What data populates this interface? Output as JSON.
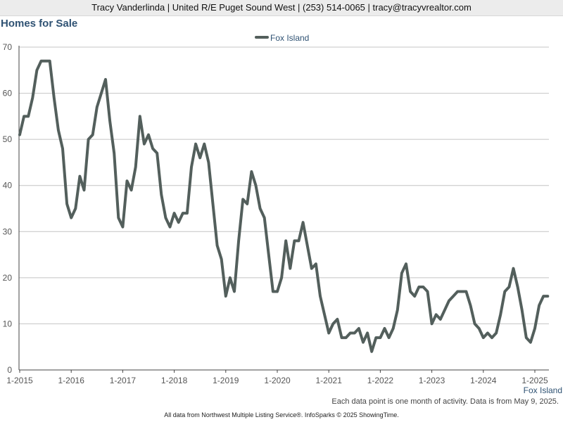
{
  "header": {
    "contact_line": "Tracy Vanderlinda | United R/E Puget Sound West | (253) 514-0065 | tracy@tracyvrealtor.com"
  },
  "chart_data": {
    "type": "line",
    "title": "Homes for Sale",
    "xlabel": "",
    "ylabel": "",
    "ylim": [
      0,
      70
    ],
    "yticks": [
      0,
      10,
      20,
      30,
      40,
      50,
      60,
      70
    ],
    "xticks": [
      "1-2015",
      "1-2016",
      "1-2017",
      "1-2018",
      "1-2019",
      "1-2020",
      "1-2021",
      "1-2022",
      "1-2023",
      "1-2024",
      "1-2025"
    ],
    "x_start": "2015-01",
    "x_step": "1 month",
    "grid": "horizontal",
    "legend_position": "top-center",
    "series_color": "#535f5c",
    "x_axis_series_label": "Fox Island",
    "series": [
      {
        "name": "Fox Island",
        "values": [
          51,
          55,
          55,
          59,
          65,
          67,
          67,
          67,
          59,
          52,
          48,
          36,
          33,
          35,
          42,
          39,
          50,
          51,
          57,
          60,
          63,
          54,
          47,
          33,
          31,
          41,
          39,
          44,
          55,
          49,
          51,
          48,
          47,
          38,
          33,
          31,
          34,
          32,
          34,
          34,
          44,
          49,
          46,
          49,
          45,
          36,
          27,
          24,
          16,
          20,
          17,
          28,
          37,
          36,
          43,
          40,
          35,
          33,
          25,
          17,
          17,
          20,
          28,
          22,
          28,
          28,
          32,
          27,
          22,
          23,
          16,
          12,
          8,
          10,
          11,
          7,
          7,
          8,
          8,
          9,
          6,
          8,
          4,
          7,
          7,
          9,
          7,
          9,
          13,
          21,
          23,
          17,
          16,
          18,
          18,
          17,
          10,
          12,
          11,
          13,
          15,
          16,
          17,
          17,
          17,
          14,
          10,
          9,
          7,
          8,
          7,
          8,
          12,
          17,
          18,
          22,
          18,
          13,
          7,
          6,
          9,
          14,
          16,
          16
        ]
      }
    ]
  },
  "footnote": "Each data point is one month of activity. Data is from May 9, 2025.",
  "source": "All data from Northwest Multiple Listing Service®. InfoSparks © 2025 ShowingTime."
}
